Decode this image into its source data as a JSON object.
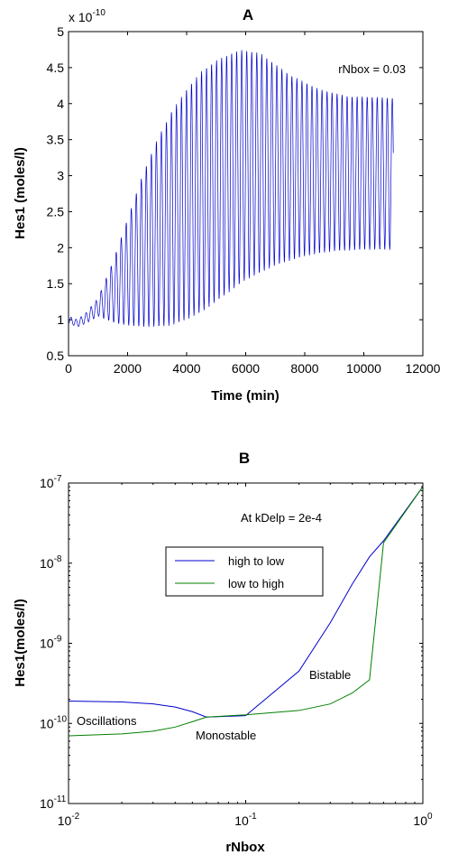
{
  "chart_data": [
    {
      "type": "line",
      "title": "A",
      "xlabel": "Time (min)",
      "ylabel": "Hes1 (moles/l)",
      "exponent_label": "x 10",
      "exponent_power": "-10",
      "xlim": [
        0,
        12000
      ],
      "ylim": [
        0.5,
        5
      ],
      "xticks": [
        "0",
        "2000",
        "4000",
        "6000",
        "8000",
        "10000",
        "12000"
      ],
      "yticks": [
        "0.5",
        "1",
        "1.5",
        "2",
        "2.5",
        "3",
        "3.5",
        "4",
        "4.5",
        "5"
      ],
      "annotation": "rNbox = 0.03",
      "line_color": "#0000cc",
      "series": [
        {
          "envelope_upper": [
            [
              0,
              1.05
            ],
            [
              300,
              1.0
            ],
            [
              600,
              1.1
            ],
            [
              1000,
              1.3
            ],
            [
              1500,
              1.8
            ],
            [
              2000,
              2.4
            ],
            [
              2500,
              3.0
            ],
            [
              3000,
              3.5
            ],
            [
              3500,
              3.9
            ],
            [
              4000,
              4.2
            ],
            [
              4500,
              4.45
            ],
            [
              5000,
              4.6
            ],
            [
              5500,
              4.7
            ],
            [
              5900,
              4.75
            ],
            [
              6500,
              4.7
            ],
            [
              7000,
              4.55
            ],
            [
              7500,
              4.4
            ],
            [
              8000,
              4.3
            ],
            [
              8500,
              4.2
            ],
            [
              9000,
              4.15
            ],
            [
              9500,
              4.1
            ],
            [
              10000,
              4.1
            ],
            [
              11000,
              4.08
            ]
          ],
          "envelope_lower": [
            [
              0,
              0.95
            ],
            [
              300,
              0.9
            ],
            [
              600,
              0.95
            ],
            [
              1000,
              1.05
            ],
            [
              1300,
              1.0
            ],
            [
              1600,
              0.95
            ],
            [
              2000,
              0.92
            ],
            [
              2500,
              0.9
            ],
            [
              3000,
              0.9
            ],
            [
              3500,
              0.92
            ],
            [
              4000,
              1.0
            ],
            [
              4500,
              1.1
            ],
            [
              5000,
              1.25
            ],
            [
              5500,
              1.4
            ],
            [
              6000,
              1.55
            ],
            [
              6500,
              1.65
            ],
            [
              7000,
              1.75
            ],
            [
              7500,
              1.82
            ],
            [
              8000,
              1.88
            ],
            [
              8500,
              1.92
            ],
            [
              9000,
              1.95
            ],
            [
              9500,
              1.96
            ],
            [
              10000,
              1.97
            ],
            [
              11000,
              1.97
            ]
          ],
          "period_min": 170
        }
      ]
    },
    {
      "type": "line",
      "title": "B",
      "xlabel": "rNbox",
      "ylabel": "Hes1(moles/l)",
      "xscale": "log",
      "yscale": "log",
      "xlim": [
        0.01,
        1
      ],
      "ylim": [
        1e-11,
        1e-07
      ],
      "xticks": [
        {
          "base": "10",
          "exp": "-2",
          "value": 0.01
        },
        {
          "base": "10",
          "exp": "-1",
          "value": 0.1
        },
        {
          "base": "10",
          "exp": "0",
          "value": 1
        }
      ],
      "yticks": [
        {
          "base": "10",
          "exp": "-11",
          "value": 1e-11
        },
        {
          "base": "10",
          "exp": "-10",
          "value": 1e-10
        },
        {
          "base": "10",
          "exp": "-9",
          "value": 1e-09
        },
        {
          "base": "10",
          "exp": "-8",
          "value": 1e-08
        },
        {
          "base": "10",
          "exp": "-7",
          "value": 1e-07
        }
      ],
      "annotations": {
        "condition": "At kDelp = 2e-4",
        "oscillations": "Oscillations",
        "monostable": "Monostable",
        "bistable": "Bistable"
      },
      "legend_position": "upper-middle",
      "series": [
        {
          "name": "high to low",
          "color": "#0000cc",
          "points": [
            [
              0.01,
              1.9e-10
            ],
            [
              0.02,
              1.85e-10
            ],
            [
              0.03,
              1.75e-10
            ],
            [
              0.04,
              1.6e-10
            ],
            [
              0.05,
              1.4e-10
            ],
            [
              0.06,
              1.2e-10
            ],
            [
              0.1,
              1.25e-10
            ],
            [
              0.2,
              4.5e-10
            ],
            [
              0.3,
              1.8e-09
            ],
            [
              0.4,
              5.5e-09
            ],
            [
              0.5,
              1.2e-08
            ],
            [
              0.6,
              1.9e-08
            ],
            [
              1.0,
              9e-08
            ]
          ]
        },
        {
          "name": "low to high",
          "color": "#008000",
          "points": [
            [
              0.01,
              7e-11
            ],
            [
              0.02,
              7.4e-11
            ],
            [
              0.03,
              8e-11
            ],
            [
              0.04,
              9e-11
            ],
            [
              0.05,
              1.05e-10
            ],
            [
              0.06,
              1.2e-10
            ],
            [
              0.1,
              1.28e-10
            ],
            [
              0.2,
              1.45e-10
            ],
            [
              0.3,
              1.75e-10
            ],
            [
              0.4,
              2.4e-10
            ],
            [
              0.5,
              3.5e-10
            ],
            [
              0.6,
              1.8e-08
            ],
            [
              1.0,
              9e-08
            ]
          ]
        }
      ]
    }
  ]
}
